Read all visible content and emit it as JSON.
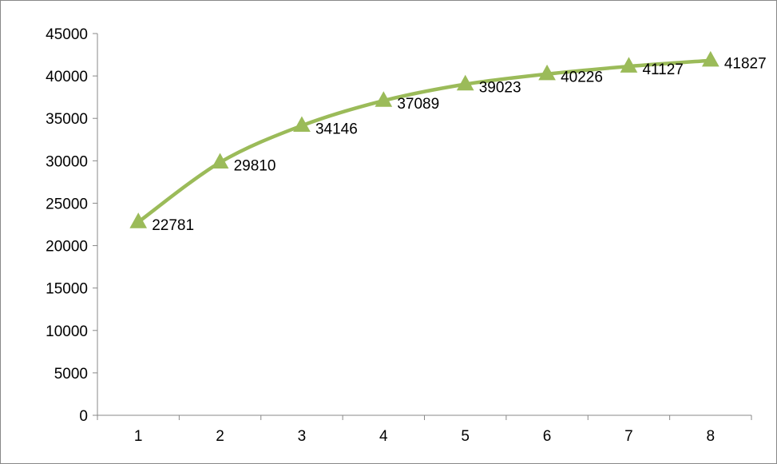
{
  "chart_data": {
    "type": "line",
    "title": "",
    "xlabel": "",
    "ylabel": "",
    "x": [
      1,
      2,
      3,
      4,
      5,
      6,
      7,
      8
    ],
    "series": [
      {
        "values": [
          22781,
          29810,
          34146,
          37089,
          39023,
          40226,
          41127,
          41827
        ],
        "color": "#9BBB59",
        "marker": "triangle",
        "smooth": true,
        "data_labels": [
          "22781",
          "29810",
          "34146",
          "37089",
          "39023",
          "40226",
          "41127",
          "41827"
        ]
      }
    ],
    "ylim": [
      0,
      45000
    ],
    "y_ticks": [
      0,
      5000,
      10000,
      15000,
      20000,
      25000,
      30000,
      35000,
      40000,
      45000
    ],
    "x_tick_labels": [
      "1",
      "2",
      "3",
      "4",
      "5",
      "6",
      "7",
      "8"
    ],
    "grid": false,
    "legend": "none"
  }
}
